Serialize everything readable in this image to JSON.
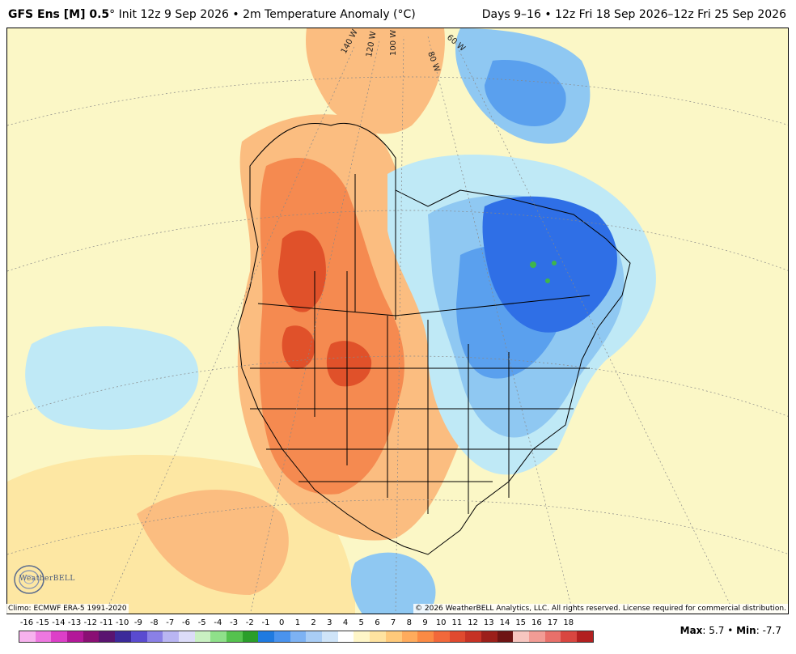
{
  "header": {
    "model": "GFS Ens [M] 0.5",
    "degree": "°",
    "init": "Init 12z 9 Sep 2026",
    "bullet": "•",
    "variable": "2m Temperature Anomaly (°C)",
    "days": "Days 9–16",
    "valid": "12z Fri 18 Sep 2026–12z Fri 25 Sep 2026"
  },
  "map": {
    "lon_labels": [
      "140 W",
      "120 W",
      "100 W",
      "80 W",
      "60 W"
    ],
    "colors": {
      "warm_strong": "#e0512a",
      "warm": "#f58a50",
      "warm_light": "#fbbd80",
      "neutral_warm": "#fde7a3",
      "neutral": "#fbf7c6",
      "cool_light": "#bfe9f6",
      "cool": "#8fc8f2",
      "cool_mid": "#5aa0ee",
      "cool_strong": "#2f6fe6",
      "coldest_spot": "#3fb54a",
      "border": "#000000"
    }
  },
  "footer": {
    "climo": "Climo: ECMWF ERA-5 1991-2020",
    "copyright": "© 2026 WeatherBELL Analytics, LLC. All rights reserved. License required for commercial distribution.",
    "logo_text": "WeatherBELL"
  },
  "colorbar": {
    "ticks": [
      "-16",
      "-15",
      "-14",
      "-13",
      "-12",
      "-11",
      "-10",
      "-9",
      "-8",
      "-7",
      "-6",
      "-5",
      "-4",
      "-3",
      "-2",
      "-1",
      "0",
      "1",
      "2",
      "3",
      "4",
      "5",
      "6",
      "7",
      "8",
      "9",
      "10",
      "11",
      "12",
      "13",
      "14",
      "15",
      "16",
      "17",
      "18"
    ],
    "colors": [
      "#f7b2ee",
      "#ee78e0",
      "#dd3fc8",
      "#b31899",
      "#8a0f74",
      "#5a1470",
      "#3b2a9a",
      "#5a4bd0",
      "#8a80e6",
      "#b9b5f2",
      "#dcdcf8",
      "#c9f0c2",
      "#8fe08a",
      "#55c24e",
      "#2a9e2a",
      "#1f7ae0",
      "#4a93ee",
      "#7db2f3",
      "#a9cdf5",
      "#cfe4f8",
      "#ffffff",
      "#fff6c8",
      "#ffe3a0",
      "#ffc97a",
      "#ffab5c",
      "#fb8a44",
      "#f2683a",
      "#e04a2f",
      "#c63225",
      "#9c1f1a",
      "#6e1414",
      "#f7c6c0",
      "#f29c95",
      "#e8706a",
      "#d94640",
      "#b22020"
    ]
  },
  "stats": {
    "max_label": "Max",
    "max_value": ": 5.7",
    "sep": "•",
    "min_label": "Min",
    "min_value": ": -7.7"
  }
}
